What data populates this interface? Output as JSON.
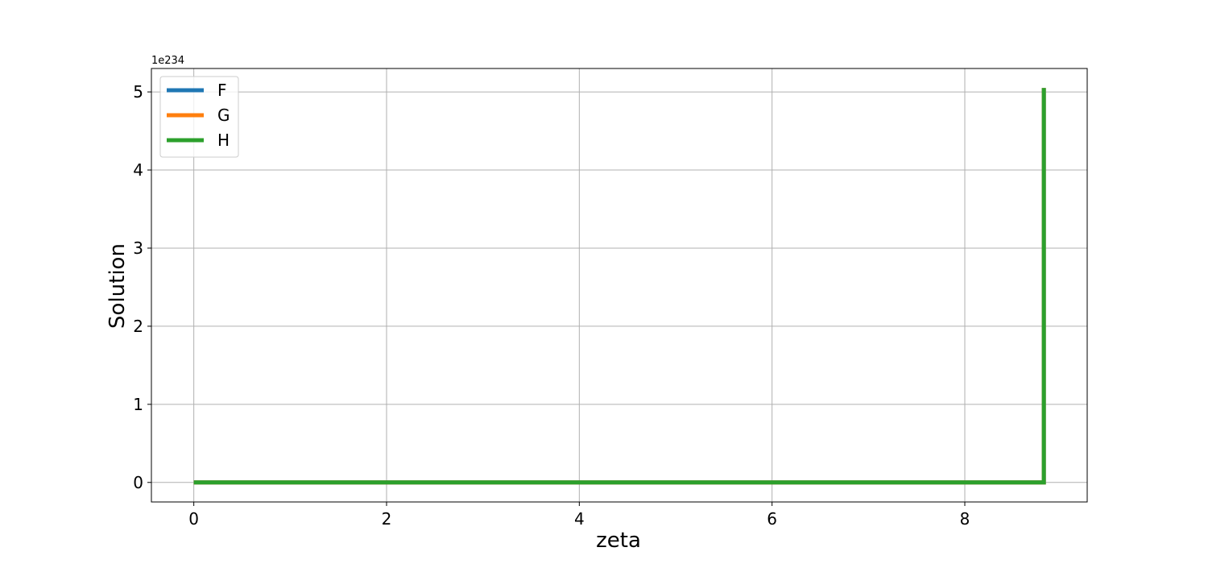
{
  "chart_data": {
    "type": "line",
    "xlabel": "zeta",
    "ylabel": "Solution",
    "y_offset_label": "1e234",
    "xlim": [
      -0.44,
      9.27
    ],
    "ylim": [
      -0.25,
      5.3
    ],
    "y_scale_note": "values in units of 1e234",
    "x_ticks": [
      0,
      2,
      4,
      6,
      8
    ],
    "x_tick_labels": [
      "0",
      "2",
      "4",
      "6",
      "8"
    ],
    "y_ticks": [
      0,
      1,
      2,
      3,
      4,
      5
    ],
    "y_tick_labels": [
      "0",
      "1",
      "2",
      "3",
      "4",
      "5"
    ],
    "grid": true,
    "legend_position": "upper-left",
    "series": [
      {
        "name": "F",
        "color": "#1f77b4",
        "x": [
          0,
          8.82,
          8.82
        ],
        "y": [
          0,
          0,
          5.05
        ]
      },
      {
        "name": "G",
        "color": "#ff7f0e",
        "x": [
          0,
          8.82,
          8.82
        ],
        "y": [
          0,
          0,
          5.05
        ]
      },
      {
        "name": "H",
        "color": "#2ca02c",
        "x": [
          0,
          8.82,
          8.82
        ],
        "y": [
          0,
          0,
          5.05
        ]
      }
    ]
  }
}
